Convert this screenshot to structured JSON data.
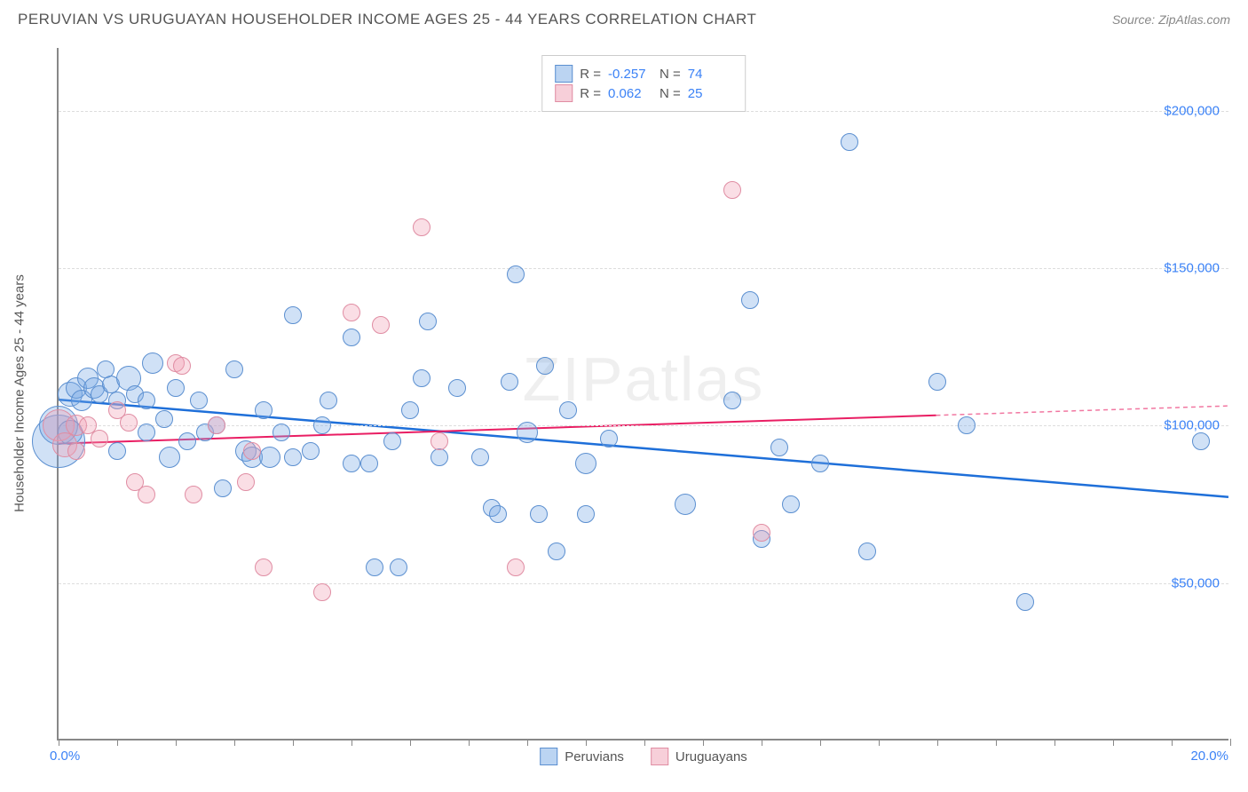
{
  "title": "PERUVIAN VS URUGUAYAN HOUSEHOLDER INCOME AGES 25 - 44 YEARS CORRELATION CHART",
  "source": "Source: ZipAtlas.com",
  "watermark": "ZIPatlas",
  "yaxis_title": "Householder Income Ages 25 - 44 years",
  "chart": {
    "type": "scatter",
    "xlim": [
      0,
      20
    ],
    "ylim": [
      0,
      220000
    ],
    "x_ticks": [
      0,
      1,
      2,
      3,
      4,
      5,
      6,
      7,
      8,
      9,
      10,
      11,
      12,
      13,
      14,
      15,
      16,
      17,
      18,
      19,
      20
    ],
    "x_label_min": "0.0%",
    "x_label_max": "20.0%",
    "y_gridlines": [
      50000,
      100000,
      150000,
      200000
    ],
    "y_tick_labels": [
      "$50,000",
      "$100,000",
      "$150,000",
      "$200,000"
    ],
    "grid_color": "#dddddd",
    "axis_color": "#888888",
    "background_color": "#ffffff",
    "tick_label_color": "#3b82f6",
    "tick_label_fontsize": 15,
    "axis_title_color": "#555555",
    "axis_title_fontsize": 15
  },
  "series": [
    {
      "name": "Peruvians",
      "color_fill": "rgba(120,170,230,0.35)",
      "color_stroke": "#5b8fd0",
      "class": "s1",
      "R": "-0.257",
      "N": "74",
      "trend": {
        "x1": 0,
        "y1": 108000,
        "x2": 20,
        "y2": 77000,
        "stroke": "#1e6fd9",
        "width": 2.5,
        "dash": "none"
      },
      "points": [
        {
          "x": 0.0,
          "y": 95000,
          "r": 30
        },
        {
          "x": 0.0,
          "y": 100000,
          "r": 22
        },
        {
          "x": 0.2,
          "y": 110000,
          "r": 14
        },
        {
          "x": 0.2,
          "y": 98000,
          "r": 14
        },
        {
          "x": 0.3,
          "y": 112000,
          "r": 12
        },
        {
          "x": 0.4,
          "y": 108000,
          "r": 12
        },
        {
          "x": 0.5,
          "y": 115000,
          "r": 12
        },
        {
          "x": 0.6,
          "y": 112000,
          "r": 12
        },
        {
          "x": 0.7,
          "y": 110000,
          "r": 10
        },
        {
          "x": 0.8,
          "y": 118000,
          "r": 10
        },
        {
          "x": 0.9,
          "y": 113000,
          "r": 10
        },
        {
          "x": 1.0,
          "y": 108000,
          "r": 10
        },
        {
          "x": 1.0,
          "y": 92000,
          "r": 10
        },
        {
          "x": 1.2,
          "y": 115000,
          "r": 14
        },
        {
          "x": 1.3,
          "y": 110000,
          "r": 10
        },
        {
          "x": 1.5,
          "y": 108000,
          "r": 10
        },
        {
          "x": 1.5,
          "y": 98000,
          "r": 10
        },
        {
          "x": 1.6,
          "y": 120000,
          "r": 12
        },
        {
          "x": 1.8,
          "y": 102000,
          "r": 10
        },
        {
          "x": 1.9,
          "y": 90000,
          "r": 12
        },
        {
          "x": 2.0,
          "y": 112000,
          "r": 10
        },
        {
          "x": 2.2,
          "y": 95000,
          "r": 10
        },
        {
          "x": 2.4,
          "y": 108000,
          "r": 10
        },
        {
          "x": 2.5,
          "y": 98000,
          "r": 10
        },
        {
          "x": 2.7,
          "y": 100000,
          "r": 10
        },
        {
          "x": 2.8,
          "y": 80000,
          "r": 10
        },
        {
          "x": 3.0,
          "y": 118000,
          "r": 10
        },
        {
          "x": 3.2,
          "y": 92000,
          "r": 12
        },
        {
          "x": 3.3,
          "y": 90000,
          "r": 12
        },
        {
          "x": 3.5,
          "y": 105000,
          "r": 10
        },
        {
          "x": 3.6,
          "y": 90000,
          "r": 12
        },
        {
          "x": 3.8,
          "y": 98000,
          "r": 10
        },
        {
          "x": 4.0,
          "y": 90000,
          "r": 10
        },
        {
          "x": 4.0,
          "y": 135000,
          "r": 10
        },
        {
          "x": 4.3,
          "y": 92000,
          "r": 10
        },
        {
          "x": 4.5,
          "y": 100000,
          "r": 10
        },
        {
          "x": 4.6,
          "y": 108000,
          "r": 10
        },
        {
          "x": 5.0,
          "y": 88000,
          "r": 10
        },
        {
          "x": 5.0,
          "y": 128000,
          "r": 10
        },
        {
          "x": 5.3,
          "y": 88000,
          "r": 10
        },
        {
          "x": 5.4,
          "y": 55000,
          "r": 10
        },
        {
          "x": 5.7,
          "y": 95000,
          "r": 10
        },
        {
          "x": 5.8,
          "y": 55000,
          "r": 10
        },
        {
          "x": 6.0,
          "y": 105000,
          "r": 10
        },
        {
          "x": 6.2,
          "y": 115000,
          "r": 10
        },
        {
          "x": 6.3,
          "y": 133000,
          "r": 10
        },
        {
          "x": 6.5,
          "y": 90000,
          "r": 10
        },
        {
          "x": 6.8,
          "y": 112000,
          "r": 10
        },
        {
          "x": 7.2,
          "y": 90000,
          "r": 10
        },
        {
          "x": 7.4,
          "y": 74000,
          "r": 10
        },
        {
          "x": 7.5,
          "y": 72000,
          "r": 10
        },
        {
          "x": 7.7,
          "y": 114000,
          "r": 10
        },
        {
          "x": 7.8,
          "y": 148000,
          "r": 10
        },
        {
          "x": 8.0,
          "y": 98000,
          "r": 12
        },
        {
          "x": 8.2,
          "y": 72000,
          "r": 10
        },
        {
          "x": 8.3,
          "y": 119000,
          "r": 10
        },
        {
          "x": 8.5,
          "y": 60000,
          "r": 10
        },
        {
          "x": 8.7,
          "y": 105000,
          "r": 10
        },
        {
          "x": 9.0,
          "y": 72000,
          "r": 10
        },
        {
          "x": 9.0,
          "y": 88000,
          "r": 12
        },
        {
          "x": 9.4,
          "y": 96000,
          "r": 10
        },
        {
          "x": 10.7,
          "y": 75000,
          "r": 12
        },
        {
          "x": 11.5,
          "y": 108000,
          "r": 10
        },
        {
          "x": 11.8,
          "y": 140000,
          "r": 10
        },
        {
          "x": 12.0,
          "y": 64000,
          "r": 10
        },
        {
          "x": 12.3,
          "y": 93000,
          "r": 10
        },
        {
          "x": 12.5,
          "y": 75000,
          "r": 10
        },
        {
          "x": 13.0,
          "y": 88000,
          "r": 10
        },
        {
          "x": 13.5,
          "y": 190000,
          "r": 10
        },
        {
          "x": 13.8,
          "y": 60000,
          "r": 10
        },
        {
          "x": 15.0,
          "y": 114000,
          "r": 10
        },
        {
          "x": 15.5,
          "y": 100000,
          "r": 10
        },
        {
          "x": 16.5,
          "y": 44000,
          "r": 10
        },
        {
          "x": 19.5,
          "y": 95000,
          "r": 10
        }
      ]
    },
    {
      "name": "Uruguayans",
      "color_fill": "rgba(240,160,180,0.35)",
      "color_stroke": "#e08da3",
      "class": "s2",
      "R": "0.062",
      "N": "25",
      "trend": {
        "x1": 0,
        "y1": 94000,
        "x2": 15,
        "y2": 103000,
        "stroke": "#e91e63",
        "width": 2,
        "dash": "none",
        "dash_extend_x": 20,
        "dash_extend_y": 106000
      },
      "points": [
        {
          "x": 0.0,
          "y": 100000,
          "r": 18
        },
        {
          "x": 0.1,
          "y": 94000,
          "r": 14
        },
        {
          "x": 0.3,
          "y": 100000,
          "r": 12
        },
        {
          "x": 0.3,
          "y": 92000,
          "r": 10
        },
        {
          "x": 0.5,
          "y": 100000,
          "r": 10
        },
        {
          "x": 0.7,
          "y": 96000,
          "r": 10
        },
        {
          "x": 1.0,
          "y": 105000,
          "r": 10
        },
        {
          "x": 1.2,
          "y": 101000,
          "r": 10
        },
        {
          "x": 1.3,
          "y": 82000,
          "r": 10
        },
        {
          "x": 1.5,
          "y": 78000,
          "r": 10
        },
        {
          "x": 2.0,
          "y": 120000,
          "r": 10
        },
        {
          "x": 2.1,
          "y": 119000,
          "r": 10
        },
        {
          "x": 2.3,
          "y": 78000,
          "r": 10
        },
        {
          "x": 2.7,
          "y": 100000,
          "r": 10
        },
        {
          "x": 3.2,
          "y": 82000,
          "r": 10
        },
        {
          "x": 3.3,
          "y": 92000,
          "r": 10
        },
        {
          "x": 3.5,
          "y": 55000,
          "r": 10
        },
        {
          "x": 4.5,
          "y": 47000,
          "r": 10
        },
        {
          "x": 5.0,
          "y": 136000,
          "r": 10
        },
        {
          "x": 5.5,
          "y": 132000,
          "r": 10
        },
        {
          "x": 6.2,
          "y": 163000,
          "r": 10
        },
        {
          "x": 6.5,
          "y": 95000,
          "r": 10
        },
        {
          "x": 7.8,
          "y": 55000,
          "r": 10
        },
        {
          "x": 11.5,
          "y": 175000,
          "r": 10
        },
        {
          "x": 12.0,
          "y": 66000,
          "r": 10
        }
      ]
    }
  ],
  "legend_top": {
    "rows": [
      {
        "swatch": "blue",
        "R_label": "R =",
        "R_val": "-0.257",
        "N_label": "N =",
        "N_val": "74"
      },
      {
        "swatch": "pink",
        "R_label": "R =",
        "R_val": " 0.062",
        "N_label": "N =",
        "N_val": "25"
      }
    ]
  },
  "legend_bottom": {
    "items": [
      {
        "swatch": "blue",
        "label": "Peruvians"
      },
      {
        "swatch": "pink",
        "label": "Uruguayans"
      }
    ]
  }
}
